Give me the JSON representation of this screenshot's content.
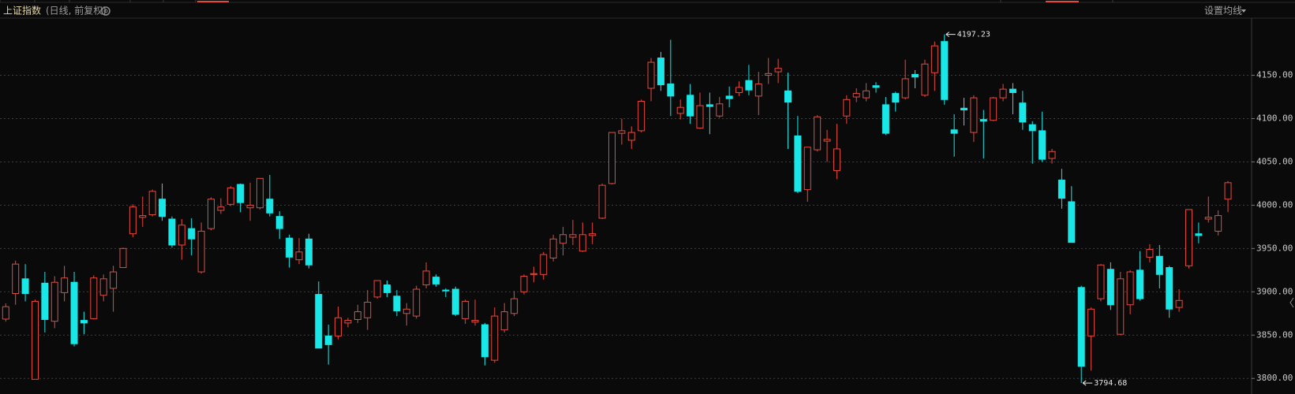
{
  "chart_data": {
    "type": "candlestick",
    "title": "上证指数",
    "subtitle": "(日线, 前复权)",
    "ma_button": "设置均线",
    "up_color": "#e8493e",
    "down_color": "#19e6e6",
    "grid": true,
    "ylim": [
      3782,
      4216
    ],
    "yticks": [
      {
        "value": 3800,
        "label": "3800.00"
      },
      {
        "value": 3850,
        "label": "3850.00"
      },
      {
        "value": 3900,
        "label": "3900.00"
      },
      {
        "value": 3950,
        "label": "3950.00"
      },
      {
        "value": 4000,
        "label": "4000.00"
      },
      {
        "value": 4050,
        "label": "4050.00"
      },
      {
        "value": 4100,
        "label": "4100.00"
      },
      {
        "value": 4150,
        "label": "4150.00"
      }
    ],
    "open": [
      3868.5,
      3898,
      3915,
      3799,
      3910,
      3866,
      3899,
      3911,
      3867,
      3869,
      3896,
      3904,
      3928,
      3967,
      3986,
      3989,
      4007,
      3984,
      3954,
      3973,
      3923,
      3973,
      3994,
      4001,
      4024,
      3997,
      3997,
      4007,
      3987,
      3962,
      3937,
      3961,
      3897,
      3849,
      3849,
      3864,
      3868,
      3870,
      3894,
      3908,
      3895,
      3875,
      3872,
      3908,
      3917,
      3902,
      3903,
      3869,
      3865,
      3862,
      3821,
      3856,
      3875,
      3900,
      3920,
      3920,
      3939,
      3956,
      3963,
      3947,
      3965,
      3985,
      4025,
      4083,
      4075,
      4086,
      4135,
      4170,
      4140,
      4106,
      4127,
      4089,
      4116,
      4103,
      4126,
      4130,
      4144,
      4126,
      4150,
      4154,
      4132,
      4080,
      4018,
      4064,
      4074,
      4040,
      4103,
      4125,
      4124,
      4138,
      4116,
      4129,
      4124,
      4151,
      4127,
      4153,
      4189,
      4087,
      4112,
      4084,
      4099,
      4098,
      4124,
      4134,
      4118,
      4093,
      4086,
      4054,
      4029,
      4004,
      3905,
      3849,
      3892,
      3926,
      3851,
      3885,
      3925,
      3940,
      3941,
      3928,
      3882,
      3930,
      3967,
      3984,
      3970,
      4007
    ],
    "high": [
      3886.6,
      3936,
      3932,
      3891,
      3923,
      3918,
      3930,
      3923,
      3877,
      3919,
      3920,
      3930,
      3951,
      4001,
      4010,
      4018,
      4025,
      3987,
      3984,
      3985,
      3980,
      4009,
      4008,
      4022,
      4025,
      4026,
      4031,
      4035,
      3993,
      3966,
      3962,
      3967,
      3912,
      3862,
      3883,
      3870,
      3885,
      3902,
      3913,
      3913,
      3902,
      3887,
      3907,
      3934,
      3920,
      3904,
      3906,
      3891,
      3891,
      3864,
      3882,
      3887,
      3901,
      3920,
      3929,
      3946,
      3966,
      3975,
      3983,
      3980,
      3980,
      4025,
      4084,
      4100,
      4091,
      4122,
      4170,
      4177,
      4191,
      4122,
      4140,
      4130,
      4130,
      4125,
      4137,
      4143,
      4162,
      4154,
      4170,
      4169,
      4153,
      4103,
      4067,
      4104,
      4087,
      4094,
      4127,
      4135,
      4141,
      4142,
      4125,
      4131,
      4168,
      4156,
      4168,
      4189,
      4197.23,
      4105,
      4124,
      4127,
      4110,
      4125,
      4140,
      4141,
      4132,
      4097,
      4108,
      4065,
      4042,
      4022,
      3907,
      3882,
      3932,
      3934,
      3923,
      3925,
      3947,
      3955,
      3954,
      3930,
      3903,
      3995,
      3980,
      4010,
      3994,
      4028
    ],
    "low": [
      3865.6,
      3885,
      3889,
      3799,
      3853,
      3858,
      3889,
      3837,
      3851,
      3868,
      3889,
      3877,
      3928,
      3963,
      3975,
      3987,
      3982,
      3951,
      3937,
      3942,
      3921,
      3971,
      3990,
      3999,
      3992,
      3982,
      3995,
      3987,
      3961,
      3928,
      3932,
      3927,
      3835,
      3816,
      3845,
      3859,
      3864,
      3856,
      3892,
      3894,
      3872,
      3861,
      3869,
      3904,
      3906,
      3894,
      3872,
      3863,
      3861,
      3815,
      3818,
      3853,
      3872,
      3897,
      3911,
      3914,
      3935,
      3942,
      3954,
      3946,
      3955,
      3984,
      4024,
      4070,
      4065,
      4084,
      4120,
      4132,
      4103,
      4099,
      4094,
      4088,
      4082,
      4101,
      4113,
      4126,
      4127,
      4104,
      4140,
      4141,
      4065,
      4014,
      4004,
      4062,
      4050,
      4030,
      4094,
      4119,
      4120,
      4130,
      4081,
      4108,
      4122,
      4135,
      4125,
      4132,
      4116,
      4056,
      4092,
      4073,
      4054,
      4097,
      4120,
      4105,
      4087,
      4048,
      4050,
      4048,
      3996,
      3957,
      3794.68,
      3809,
      3889,
      3879,
      3850,
      3874,
      3890,
      3934,
      3904,
      3870,
      3877,
      3927,
      3956,
      3980,
      3965,
      3992
    ],
    "close": [
      3882.8,
      3932,
      3898,
      3889,
      3868,
      3911,
      3916,
      3840,
      3864,
      3916,
      3915,
      3923,
      3950,
      3998,
      3988,
      4016,
      3987,
      3954,
      3977,
      3961,
      3970,
      4007,
      3998,
      4020,
      4003,
      4000,
      4031,
      3991,
      3973,
      3940,
      3946,
      3931,
      3835,
      3839,
      3870,
      3867,
      3877,
      3888,
      3913,
      3899,
      3878,
      3880,
      3903,
      3924,
      3909,
      3901,
      3874,
      3889,
      3867,
      3825,
      3872,
      3877,
      3892,
      3918,
      3921,
      3943,
      3961,
      3966,
      3966,
      3966,
      3967,
      4023,
      4084,
      4086,
      4084,
      4120,
      4165,
      4139,
      4126,
      4113,
      4103,
      4115,
      4114,
      4117,
      4123,
      4136,
      4133,
      4140,
      4152,
      4158,
      4119,
      4016,
      4067,
      4102,
      4076,
      4065,
      4122,
      4129,
      4132,
      4136,
      4083,
      4119,
      4146,
      4148,
      4163,
      4184,
      4122,
      4083,
      4110,
      4124,
      4097,
      4124,
      4134,
      4130,
      4096,
      4086,
      4053,
      4062,
      4008,
      3957,
      3814,
      3880,
      3931,
      3885,
      3915,
      3923,
      3892,
      3949,
      3920,
      3880,
      3890,
      3995,
      3965,
      3986,
      3988,
      4026
    ]
  }
}
